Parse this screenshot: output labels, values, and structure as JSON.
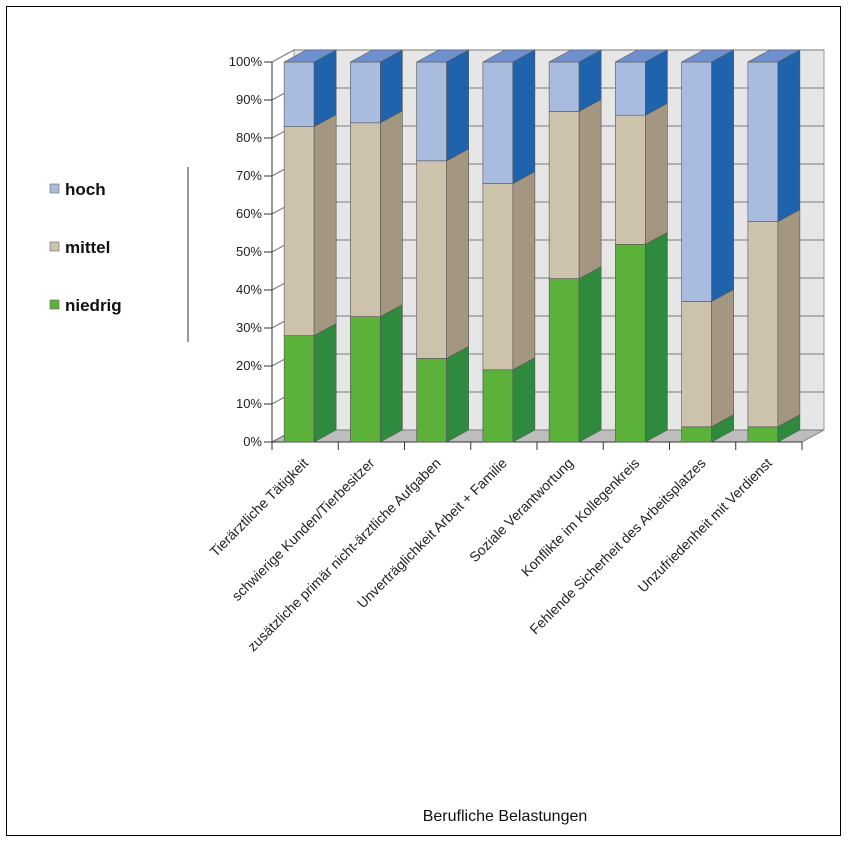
{
  "chart_data": {
    "type": "bar",
    "stacked": true,
    "percent_stacked": true,
    "three_d": true,
    "xlabel": "Berufliche Belastungen",
    "ylabel": "",
    "ylim": [
      0,
      100
    ],
    "yticks": [
      "0%",
      "10%",
      "20%",
      "30%",
      "40%",
      "50%",
      "60%",
      "70%",
      "80%",
      "90%",
      "100%"
    ],
    "grid": true,
    "legend_position": "left",
    "categories": [
      "Tierärztliche Tätigkeit",
      "schwierige Kunden/Tierbesitzer",
      "zusätzliche primär nicht-ärztliche Aufgaben",
      "Unverträglichkeit Arbeit + Familie",
      "Soziale Verantwortung",
      "Konflikte im Kollegenkreis",
      "Fehlende Sicherheit des Arbeitsplatzes",
      "Unzufriedenheit mit Verdienst"
    ],
    "series": [
      {
        "name": "niedrig",
        "color": "#5cb13a",
        "values": [
          28,
          33,
          22,
          19,
          43,
          52,
          4,
          4
        ]
      },
      {
        "name": "mittel",
        "color": "#cdc2ac",
        "values": [
          55,
          51,
          52,
          49,
          44,
          34,
          33,
          54
        ]
      },
      {
        "name": "hoch",
        "color": "#a9bce0",
        "values": [
          17,
          16,
          26,
          32,
          13,
          14,
          63,
          42
        ]
      }
    ],
    "colors": {
      "niedrig_side": "#2e8a3d",
      "mittel_side": "#a39781",
      "hoch_side": "#1f63ad",
      "hoch_top": "#6f90cf",
      "back_wall": "#e6e6e6",
      "floor": "#bdbdbd",
      "grid": "#7a7a7a"
    }
  }
}
